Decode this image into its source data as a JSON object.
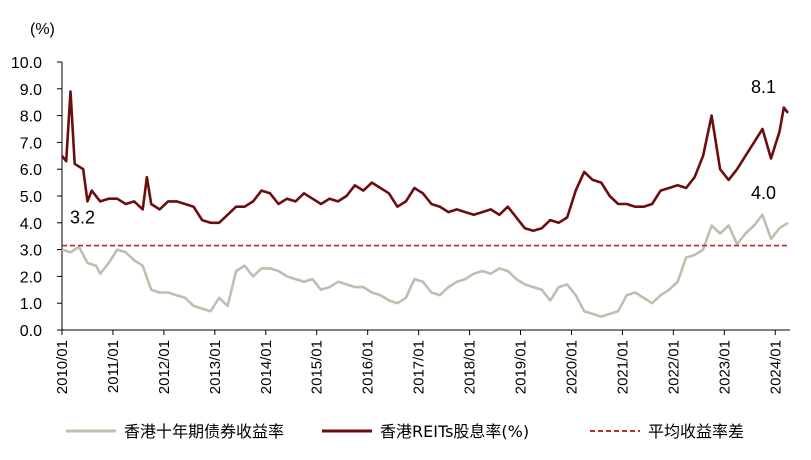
{
  "chart_data": {
    "type": "line",
    "unit_label": "(%)",
    "ylim": [
      0,
      10
    ],
    "yticks": [
      "0.0",
      "1.0",
      "2.0",
      "3.0",
      "4.0",
      "5.0",
      "6.0",
      "7.0",
      "8.0",
      "9.0",
      "10.0"
    ],
    "xticks": [
      "2010/01",
      "2011/01",
      "2012/01",
      "2013/01",
      "2014/01",
      "2015/01",
      "2016/01",
      "2017/01",
      "2018/01",
      "2019/01",
      "2020/01",
      "2021/01",
      "2022/01",
      "2023/01",
      "2024/01"
    ],
    "x_range": [
      "2010-01",
      "2024-04"
    ],
    "grid": false,
    "legend_position": "bottom",
    "series": [
      {
        "name": "香港十年期债券收益率",
        "color": "#bfbfaf",
        "points": [
          [
            "2010-01",
            3.0
          ],
          [
            "2010-03",
            2.9
          ],
          [
            "2010-05",
            3.1
          ],
          [
            "2010-07",
            2.5
          ],
          [
            "2010-09",
            2.4
          ],
          [
            "2010-10",
            2.1
          ],
          [
            "2010-12",
            2.5
          ],
          [
            "2011-02",
            3.0
          ],
          [
            "2011-04",
            2.9
          ],
          [
            "2011-06",
            2.6
          ],
          [
            "2011-08",
            2.4
          ],
          [
            "2011-10",
            1.5
          ],
          [
            "2011-12",
            1.4
          ],
          [
            "2012-02",
            1.4
          ],
          [
            "2012-04",
            1.3
          ],
          [
            "2012-06",
            1.2
          ],
          [
            "2012-08",
            0.9
          ],
          [
            "2012-10",
            0.8
          ],
          [
            "2012-12",
            0.7
          ],
          [
            "2013-02",
            1.2
          ],
          [
            "2013-04",
            0.9
          ],
          [
            "2013-06",
            2.2
          ],
          [
            "2013-08",
            2.4
          ],
          [
            "2013-10",
            2.0
          ],
          [
            "2013-12",
            2.3
          ],
          [
            "2014-02",
            2.3
          ],
          [
            "2014-04",
            2.2
          ],
          [
            "2014-06",
            2.0
          ],
          [
            "2014-08",
            1.9
          ],
          [
            "2014-10",
            1.8
          ],
          [
            "2014-12",
            1.9
          ],
          [
            "2015-02",
            1.5
          ],
          [
            "2015-04",
            1.6
          ],
          [
            "2015-06",
            1.8
          ],
          [
            "2015-08",
            1.7
          ],
          [
            "2015-10",
            1.6
          ],
          [
            "2015-12",
            1.6
          ],
          [
            "2016-02",
            1.4
          ],
          [
            "2016-04",
            1.3
          ],
          [
            "2016-06",
            1.1
          ],
          [
            "2016-08",
            1.0
          ],
          [
            "2016-10",
            1.2
          ],
          [
            "2016-12",
            1.9
          ],
          [
            "2017-02",
            1.8
          ],
          [
            "2017-04",
            1.4
          ],
          [
            "2017-06",
            1.3
          ],
          [
            "2017-08",
            1.6
          ],
          [
            "2017-10",
            1.8
          ],
          [
            "2017-12",
            1.9
          ],
          [
            "2018-02",
            2.1
          ],
          [
            "2018-04",
            2.2
          ],
          [
            "2018-06",
            2.1
          ],
          [
            "2018-08",
            2.3
          ],
          [
            "2018-10",
            2.2
          ],
          [
            "2018-12",
            1.9
          ],
          [
            "2019-02",
            1.7
          ],
          [
            "2019-04",
            1.6
          ],
          [
            "2019-06",
            1.5
          ],
          [
            "2019-08",
            1.1
          ],
          [
            "2019-10",
            1.6
          ],
          [
            "2019-12",
            1.7
          ],
          [
            "2020-02",
            1.3
          ],
          [
            "2020-04",
            0.7
          ],
          [
            "2020-06",
            0.6
          ],
          [
            "2020-08",
            0.5
          ],
          [
            "2020-10",
            0.6
          ],
          [
            "2020-12",
            0.7
          ],
          [
            "2021-02",
            1.3
          ],
          [
            "2021-04",
            1.4
          ],
          [
            "2021-06",
            1.2
          ],
          [
            "2021-08",
            1.0
          ],
          [
            "2021-10",
            1.3
          ],
          [
            "2021-12",
            1.5
          ],
          [
            "2022-02",
            1.8
          ],
          [
            "2022-04",
            2.7
          ],
          [
            "2022-06",
            2.8
          ],
          [
            "2022-08",
            3.0
          ],
          [
            "2022-10",
            3.9
          ],
          [
            "2022-12",
            3.6
          ],
          [
            "2023-02",
            3.9
          ],
          [
            "2023-04",
            3.2
          ],
          [
            "2023-06",
            3.6
          ],
          [
            "2023-08",
            3.9
          ],
          [
            "2023-10",
            4.3
          ],
          [
            "2023-12",
            3.4
          ],
          [
            "2024-02",
            3.8
          ],
          [
            "2024-04",
            4.0
          ]
        ]
      },
      {
        "name": "香港REITs股息率(%)",
        "color": "#6e0d0d",
        "points": [
          [
            "2010-01",
            6.5
          ],
          [
            "2010-02",
            6.3
          ],
          [
            "2010-03",
            8.9
          ],
          [
            "2010-04",
            6.2
          ],
          [
            "2010-06",
            6.0
          ],
          [
            "2010-07",
            4.8
          ],
          [
            "2010-08",
            5.2
          ],
          [
            "2010-10",
            4.8
          ],
          [
            "2010-12",
            4.9
          ],
          [
            "2011-02",
            4.9
          ],
          [
            "2011-04",
            4.7
          ],
          [
            "2011-06",
            4.8
          ],
          [
            "2011-08",
            4.5
          ],
          [
            "2011-09",
            5.7
          ],
          [
            "2011-10",
            4.7
          ],
          [
            "2011-12",
            4.5
          ],
          [
            "2012-02",
            4.8
          ],
          [
            "2012-04",
            4.8
          ],
          [
            "2012-06",
            4.7
          ],
          [
            "2012-08",
            4.6
          ],
          [
            "2012-10",
            4.1
          ],
          [
            "2012-12",
            4.0
          ],
          [
            "2013-02",
            4.0
          ],
          [
            "2013-04",
            4.3
          ],
          [
            "2013-06",
            4.6
          ],
          [
            "2013-08",
            4.6
          ],
          [
            "2013-10",
            4.8
          ],
          [
            "2013-12",
            5.2
          ],
          [
            "2014-02",
            5.1
          ],
          [
            "2014-04",
            4.7
          ],
          [
            "2014-06",
            4.9
          ],
          [
            "2014-08",
            4.8
          ],
          [
            "2014-10",
            5.1
          ],
          [
            "2014-12",
            4.9
          ],
          [
            "2015-02",
            4.7
          ],
          [
            "2015-04",
            4.9
          ],
          [
            "2015-06",
            4.8
          ],
          [
            "2015-08",
            5.0
          ],
          [
            "2015-10",
            5.4
          ],
          [
            "2015-12",
            5.2
          ],
          [
            "2016-02",
            5.5
          ],
          [
            "2016-04",
            5.3
          ],
          [
            "2016-06",
            5.1
          ],
          [
            "2016-08",
            4.6
          ],
          [
            "2016-10",
            4.8
          ],
          [
            "2016-12",
            5.3
          ],
          [
            "2017-02",
            5.1
          ],
          [
            "2017-04",
            4.7
          ],
          [
            "2017-06",
            4.6
          ],
          [
            "2017-08",
            4.4
          ],
          [
            "2017-10",
            4.5
          ],
          [
            "2017-12",
            4.4
          ],
          [
            "2018-02",
            4.3
          ],
          [
            "2018-04",
            4.4
          ],
          [
            "2018-06",
            4.5
          ],
          [
            "2018-08",
            4.3
          ],
          [
            "2018-10",
            4.6
          ],
          [
            "2018-12",
            4.2
          ],
          [
            "2019-02",
            3.8
          ],
          [
            "2019-04",
            3.7
          ],
          [
            "2019-06",
            3.8
          ],
          [
            "2019-08",
            4.1
          ],
          [
            "2019-10",
            4.0
          ],
          [
            "2019-12",
            4.2
          ],
          [
            "2020-02",
            5.2
          ],
          [
            "2020-04",
            5.9
          ],
          [
            "2020-06",
            5.6
          ],
          [
            "2020-08",
            5.5
          ],
          [
            "2020-10",
            5.0
          ],
          [
            "2020-12",
            4.7
          ],
          [
            "2021-02",
            4.7
          ],
          [
            "2021-04",
            4.6
          ],
          [
            "2021-06",
            4.6
          ],
          [
            "2021-08",
            4.7
          ],
          [
            "2021-10",
            5.2
          ],
          [
            "2021-12",
            5.3
          ],
          [
            "2022-02",
            5.4
          ],
          [
            "2022-04",
            5.3
          ],
          [
            "2022-06",
            5.7
          ],
          [
            "2022-08",
            6.5
          ],
          [
            "2022-10",
            8.0
          ],
          [
            "2022-12",
            6.0
          ],
          [
            "2023-02",
            5.6
          ],
          [
            "2023-04",
            6.0
          ],
          [
            "2023-06",
            6.5
          ],
          [
            "2023-08",
            7.0
          ],
          [
            "2023-10",
            7.5
          ],
          [
            "2023-12",
            6.4
          ],
          [
            "2024-02",
            7.4
          ],
          [
            "2024-03",
            8.3
          ],
          [
            "2024-04",
            8.1
          ]
        ]
      },
      {
        "name": "平均收益率差",
        "color": "#c0282d",
        "dashed": true,
        "points": [
          [
            "2010-01",
            3.15
          ],
          [
            "2024-04",
            3.15
          ]
        ]
      }
    ],
    "annotations": [
      {
        "text": "3.2",
        "x": "2010-01",
        "y": 3.15
      },
      {
        "text": "8.1",
        "x": "2024-04",
        "y": 8.1
      },
      {
        "text": "4.0",
        "x": "2024-04",
        "y": 4.0
      }
    ]
  }
}
